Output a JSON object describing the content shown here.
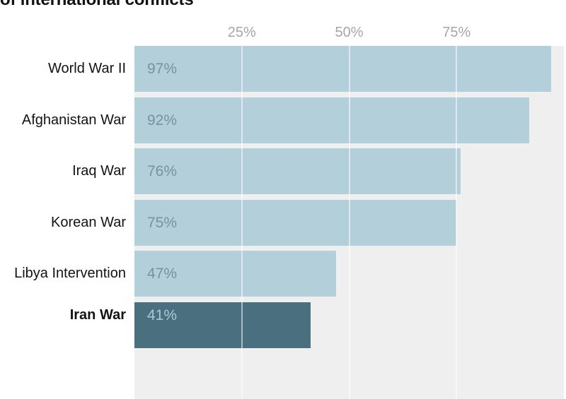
{
  "title_visible_fragment": "of international conflicts",
  "chart_data": {
    "type": "bar",
    "orientation": "horizontal",
    "title_visible": "of international conflicts",
    "title_note": "title line is cropped at the top edge of the screenshot; only the bottom of the text is visible",
    "categories": [
      "World War II",
      "Afghanistan War",
      "Iraq War",
      "Korean War",
      "Libya Intervention",
      "Iran War"
    ],
    "values": [
      97,
      92,
      76,
      75,
      47,
      41
    ],
    "value_labels": [
      "97%",
      "92%",
      "76%",
      "75%",
      "47%",
      "41%"
    ],
    "xlim": [
      0,
      100
    ],
    "x_tick_values": [
      25,
      50,
      75
    ],
    "x_tick_labels": [
      "25%",
      "50%",
      "75%"
    ],
    "highlighted_category": "Iran War",
    "highlight_note": "bottom row has a dark bar and bold category label, partially cut off at the bottom edge of the screenshot",
    "grid": "vertical gridlines at ticks, drawn over bars and plot background",
    "legend_position": "none",
    "colors": {
      "bar": "#b3cfd9",
      "bar_highlight": "#4a7080",
      "value_label": "#76949f",
      "value_label_highlight": "#aac9d2",
      "plot_background": "#efefef",
      "gridline": "#ffffff",
      "tick_label": "#a6a6a6",
      "category_label": "#131313",
      "title": "#121212"
    }
  }
}
